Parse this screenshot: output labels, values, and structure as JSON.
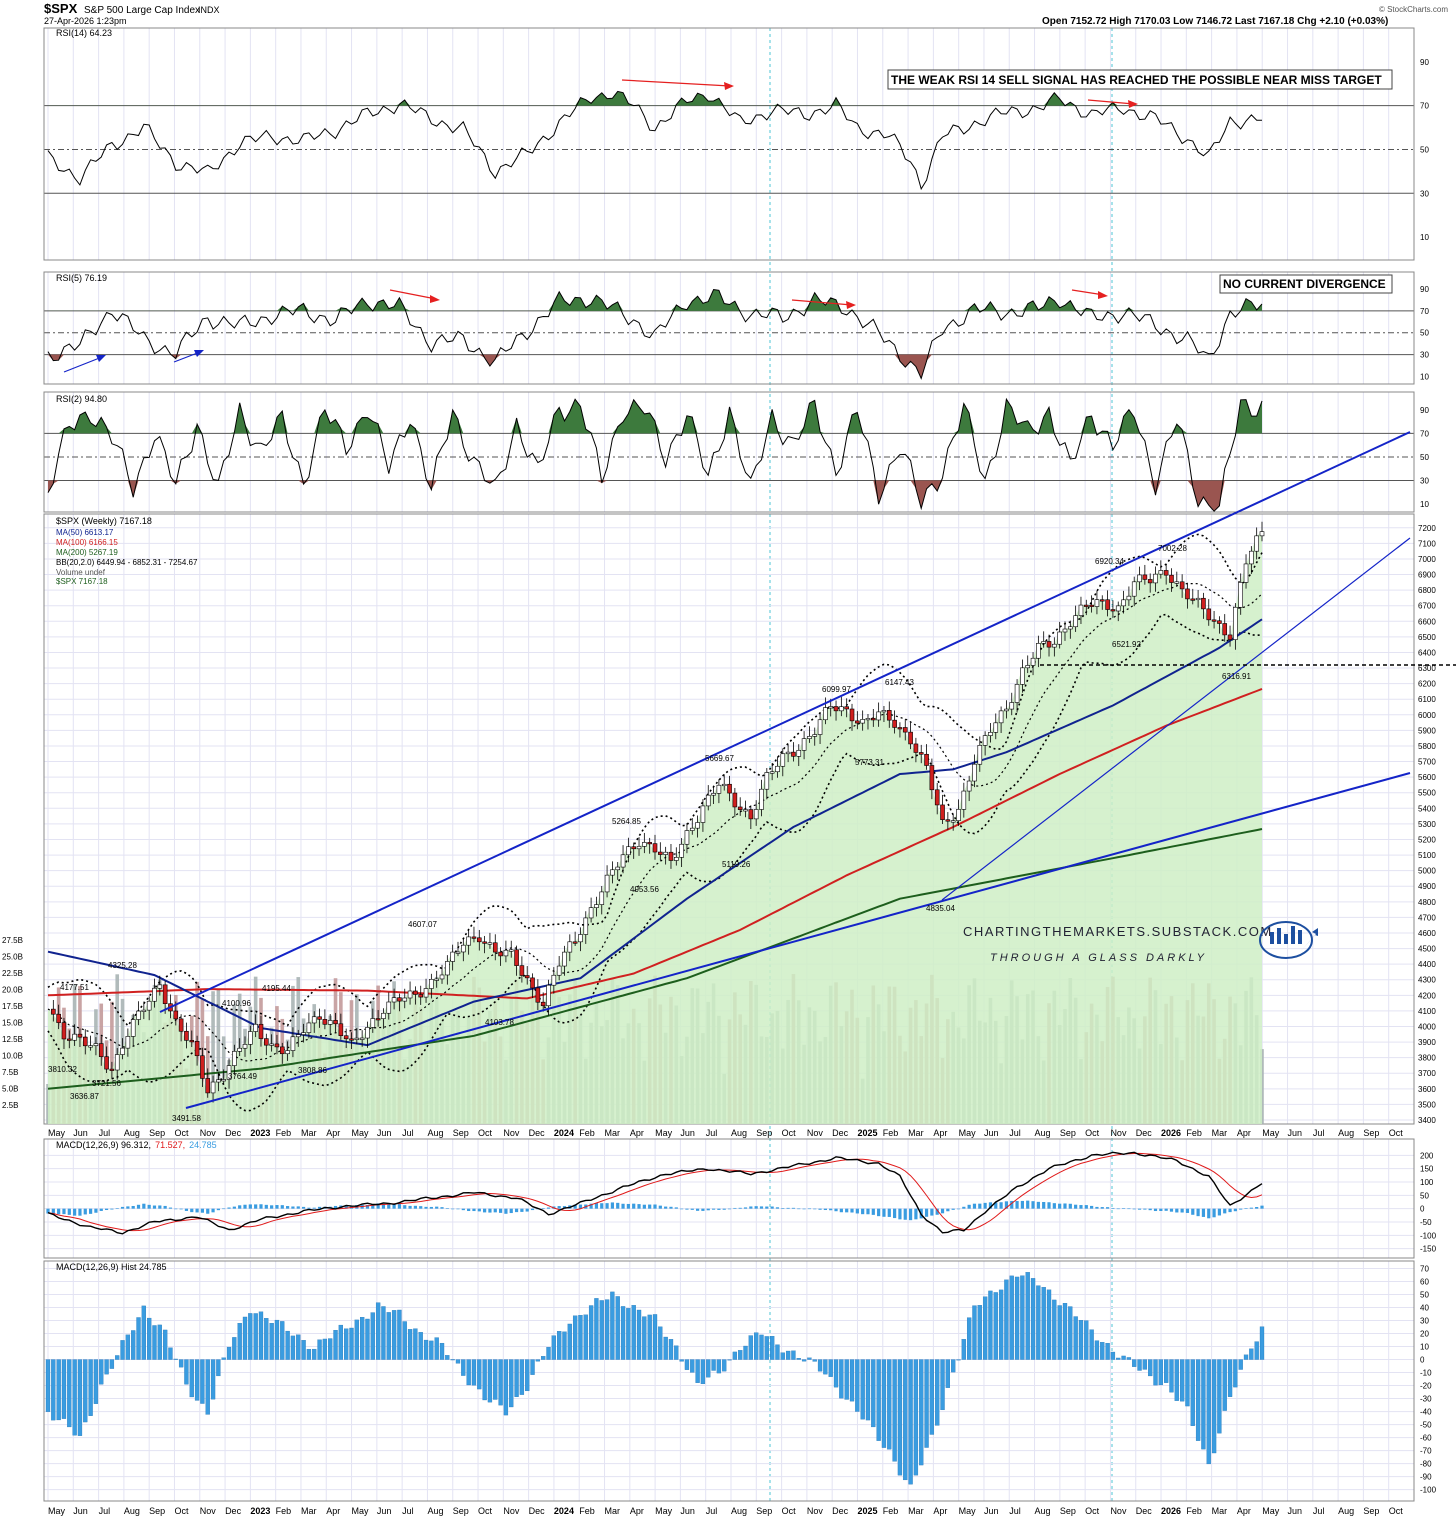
{
  "header": {
    "symbol": "$SPX",
    "name": "S&P 500 Large Cap Index",
    "exchange": "INDX",
    "datetime": "27-Apr-2026 1:23pm",
    "ohlc": "Open 7152.72  High 7170.03  Low 7146.72  Last 7167.18  Chg +2.10 (+0.03%)",
    "source": "© StockCharts.com"
  },
  "time_axis": {
    "labels": [
      "May",
      "Jun",
      "Jul",
      "Aug",
      "Sep",
      "Oct",
      "Nov",
      "Dec",
      "2023",
      "Feb",
      "Mar",
      "Apr",
      "May",
      "Jun",
      "Jul",
      "Aug",
      "Sep",
      "Oct",
      "Nov",
      "Dec",
      "2024",
      "Feb",
      "Mar",
      "Apr",
      "May",
      "Jun",
      "Jul",
      "Aug",
      "Sep",
      "Oct",
      "Nov",
      "Dec",
      "2025",
      "Feb",
      "Mar",
      "Apr",
      "May",
      "Jun",
      "Jul",
      "Aug",
      "Sep",
      "Oct",
      "Nov",
      "Dec",
      "2026",
      "Feb",
      "Mar",
      "Apr",
      "May",
      "Jun",
      "Jul",
      "Aug",
      "Sep",
      "Oct"
    ],
    "bold_labels": [
      "2023",
      "2024",
      "2025",
      "2026"
    ]
  },
  "colors": {
    "grid": "#e3e3f3",
    "ob_fill": "#3d7a3d",
    "os_fill": "#9a5550",
    "price_area": "#cfeec6",
    "up_candle": "#ffffff",
    "down_candle": "#d01f1f",
    "trendline": "#1424c8",
    "ma50": "#10238f",
    "ma100": "#d02020",
    "ma200": "#1d5e1d",
    "macd_line": "#000000",
    "signal_line": "#e01a1a",
    "hist": "#3a9ce0",
    "annotation_arrow": "#e52020"
  },
  "panels": {
    "rsi14": {
      "legend": "RSI(14) 64.23",
      "note": "THE WEAK RSI 14 SELL SIGNAL HAS REACHED THE POSSIBLE NEAR MISS TARGET",
      "ticks": [
        "90",
        "70",
        "50",
        "30",
        "10"
      ]
    },
    "rsi5": {
      "legend": "RSI(5) 76.19",
      "note": "NO CURRENT DIVERGENCE",
      "ticks": [
        "90",
        "70",
        "50",
        "30",
        "10"
      ]
    },
    "rsi2": {
      "legend": "RSI(2) 94.80",
      "ticks": [
        "90",
        "70",
        "50",
        "30",
        "10"
      ]
    },
    "price": {
      "legend": [
        "$SPX (Weekly) 7167.18",
        "MA(50) 6613.17",
        "MA(100) 6166.15",
        "MA(200) 5267.19",
        "BB(20,2.0) 6449.94 - 6852.31 - 7254.67",
        "Volume undef",
        "$SPX 7167.18"
      ],
      "ticks": [
        "7200",
        "7100",
        "7000",
        "6900",
        "6800",
        "6700",
        "6600",
        "6500",
        "6400",
        "6300",
        "6200",
        "6100",
        "6000",
        "5900",
        "5800",
        "5700",
        "5600",
        "5500",
        "5400",
        "5300",
        "5200",
        "5100",
        "5000",
        "4900",
        "4800",
        "4700",
        "4600",
        "4500",
        "4400",
        "4300",
        "4200",
        "4100",
        "4000",
        "3900",
        "3800",
        "3700",
        "3600",
        "3500",
        "3400"
      ],
      "vol_ticks": [
        "27.5B",
        "25.0B",
        "22.5B",
        "20.0B",
        "17.5B",
        "15.0B",
        "12.5B",
        "10.0B",
        "7.5B",
        "5.0B",
        "2.5B"
      ],
      "annotations": [
        "4177.51",
        "4325.28",
        "3810.32",
        "3721.56",
        "3636.87",
        "3491.58",
        "4100.96",
        "3764.49",
        "4195.44",
        "3808.86",
        "4607.07",
        "4103.78",
        "5264.85",
        "4953.56",
        "5669.67",
        "5119.26",
        "6099.97",
        "6147.43",
        "5773.31",
        "4835.04",
        "6920.34",
        "7002.28",
        "6521.92",
        "6316.91"
      ],
      "watermark_1": "CHARTINGTHEMARKETS.SUBSTACK.COM",
      "watermark_2": "THROUGH A GLASS DARKLY"
    },
    "macd": {
      "legend_a": "MACD(12,26,9) 96.312,",
      "legend_b": "71.527,",
      "legend_c": "24.785",
      "ticks": [
        "200",
        "150",
        "100",
        "50",
        "0",
        "-50",
        "-100",
        "-150"
      ]
    },
    "hist": {
      "legend": "MACD(12,26,9) Hist 24.785",
      "ticks": [
        "70",
        "60",
        "50",
        "40",
        "30",
        "20",
        "10",
        "0",
        "-10",
        "-20",
        "-30",
        "-40",
        "-50",
        "-60",
        "-70",
        "-80",
        "-90",
        "-100"
      ]
    }
  },
  "chart_data": {
    "type": "candlestick",
    "title": "$SPX S&P 500 Large Cap Index INDX",
    "period": "Weekly",
    "x_range": [
      "2022-05",
      "2026-10"
    ],
    "ylim": [
      3400,
      7250
    ],
    "last": 7167.18,
    "price_path": [
      [
        0,
        4150
      ],
      [
        3,
        3950
      ],
      [
        6,
        3900
      ],
      [
        9,
        3860
      ],
      [
        12,
        3730
      ],
      [
        15,
        3950
      ],
      [
        18,
        4120
      ],
      [
        21,
        4280
      ],
      [
        24,
        4020
      ],
      [
        27,
        3870
      ],
      [
        30,
        3600
      ],
      [
        33,
        3700
      ],
      [
        36,
        3850
      ],
      [
        39,
        3990
      ],
      [
        42,
        3880
      ],
      [
        45,
        3840
      ],
      [
        48,
        3980
      ],
      [
        51,
        4080
      ],
      [
        54,
        4000
      ],
      [
        57,
        3870
      ],
      [
        60,
        4000
      ],
      [
        63,
        4120
      ],
      [
        66,
        4170
      ],
      [
        69,
        4200
      ],
      [
        72,
        4290
      ],
      [
        75,
        4390
      ],
      [
        78,
        4530
      ],
      [
        81,
        4590
      ],
      [
        84,
        4480
      ],
      [
        87,
        4450
      ],
      [
        90,
        4300
      ],
      [
        93,
        4150
      ],
      [
        96,
        4400
      ],
      [
        99,
        4560
      ],
      [
        102,
        4760
      ],
      [
        105,
        4930
      ],
      [
        108,
        5090
      ],
      [
        111,
        5200
      ],
      [
        114,
        5140
      ],
      [
        117,
        5040
      ],
      [
        120,
        5240
      ],
      [
        123,
        5410
      ],
      [
        126,
        5550
      ],
      [
        129,
        5440
      ],
      [
        132,
        5350
      ],
      [
        135,
        5590
      ],
      [
        138,
        5720
      ],
      [
        141,
        5800
      ],
      [
        144,
        5900
      ],
      [
        147,
        6050
      ],
      [
        150,
        6030
      ],
      [
        153,
        5950
      ],
      [
        156,
        6000
      ],
      [
        159,
        5950
      ],
      [
        162,
        5850
      ],
      [
        165,
        5650
      ],
      [
        168,
        5290
      ],
      [
        171,
        5400
      ],
      [
        174,
        5700
      ],
      [
        177,
        5900
      ],
      [
        180,
        6050
      ],
      [
        183,
        6280
      ],
      [
        186,
        6420
      ],
      [
        189,
        6470
      ],
      [
        192,
        6610
      ],
      [
        195,
        6700
      ],
      [
        198,
        6710
      ],
      [
        201,
        6690
      ],
      [
        204,
        6850
      ],
      [
        207,
        6860
      ],
      [
        210,
        6930
      ],
      [
        213,
        6800
      ],
      [
        216,
        6700
      ],
      [
        219,
        6600
      ],
      [
        222,
        6520
      ],
      [
        225,
        6980
      ],
      [
        228,
        7167
      ]
    ],
    "ma50_path": [
      [
        0,
        4480
      ],
      [
        20,
        4330
      ],
      [
        40,
        3990
      ],
      [
        60,
        3880
      ],
      [
        80,
        4160
      ],
      [
        100,
        4310
      ],
      [
        120,
        4820
      ],
      [
        140,
        5280
      ],
      [
        160,
        5620
      ],
      [
        170,
        5650
      ],
      [
        180,
        5760
      ],
      [
        200,
        6060
      ],
      [
        220,
        6430
      ],
      [
        228,
        6613
      ]
    ],
    "ma100_path": [
      [
        0,
        4200
      ],
      [
        30,
        4240
      ],
      [
        60,
        4230
      ],
      [
        90,
        4180
      ],
      [
        110,
        4340
      ],
      [
        130,
        4620
      ],
      [
        150,
        4970
      ],
      [
        170,
        5280
      ],
      [
        190,
        5620
      ],
      [
        210,
        5930
      ],
      [
        228,
        6166
      ]
    ],
    "ma200_path": [
      [
        0,
        3600
      ],
      [
        40,
        3730
      ],
      [
        80,
        3940
      ],
      [
        120,
        4310
      ],
      [
        160,
        4820
      ],
      [
        200,
        5080
      ],
      [
        228,
        5267
      ]
    ],
    "rsi14_path": [
      [
        0,
        46
      ],
      [
        6,
        37
      ],
      [
        12,
        52
      ],
      [
        18,
        60
      ],
      [
        24,
        44
      ],
      [
        30,
        39
      ],
      [
        36,
        53
      ],
      [
        42,
        56
      ],
      [
        48,
        54
      ],
      [
        54,
        59
      ],
      [
        60,
        66
      ],
      [
        66,
        71
      ],
      [
        72,
        64
      ],
      [
        78,
        59
      ],
      [
        84,
        40
      ],
      [
        90,
        48
      ],
      [
        96,
        62
      ],
      [
        102,
        74
      ],
      [
        106,
        76
      ],
      [
        110,
        70
      ],
      [
        114,
        60
      ],
      [
        120,
        72
      ],
      [
        124,
        76
      ],
      [
        130,
        62
      ],
      [
        136,
        68
      ],
      [
        142,
        66
      ],
      [
        148,
        70
      ],
      [
        152,
        60
      ],
      [
        158,
        56
      ],
      [
        162,
        45
      ],
      [
        164,
        34
      ],
      [
        168,
        56
      ],
      [
        174,
        62
      ],
      [
        180,
        67
      ],
      [
        186,
        69
      ],
      [
        190,
        73
      ],
      [
        196,
        66
      ],
      [
        202,
        69
      ],
      [
        208,
        64
      ],
      [
        214,
        55
      ],
      [
        218,
        46
      ],
      [
        222,
        63
      ],
      [
        228,
        64
      ]
    ],
    "rsi5_path": [
      [
        0,
        30
      ],
      [
        6,
        38
      ],
      [
        12,
        72
      ],
      [
        18,
        44
      ],
      [
        24,
        31
      ],
      [
        30,
        64
      ],
      [
        36,
        56
      ],
      [
        42,
        66
      ],
      [
        48,
        70
      ],
      [
        54,
        61
      ],
      [
        60,
        80
      ],
      [
        66,
        73
      ],
      [
        72,
        41
      ],
      [
        78,
        44
      ],
      [
        84,
        23
      ],
      [
        90,
        52
      ],
      [
        96,
        78
      ],
      [
        102,
        82
      ],
      [
        110,
        62
      ],
      [
        114,
        46
      ],
      [
        120,
        80
      ],
      [
        126,
        82
      ],
      [
        132,
        67
      ],
      [
        138,
        64
      ],
      [
        144,
        79
      ],
      [
        150,
        73
      ],
      [
        156,
        49
      ],
      [
        160,
        31
      ],
      [
        164,
        12
      ],
      [
        168,
        54
      ],
      [
        174,
        71
      ],
      [
        180,
        69
      ],
      [
        186,
        72
      ],
      [
        190,
        82
      ],
      [
        196,
        63
      ],
      [
        202,
        69
      ],
      [
        208,
        57
      ],
      [
        214,
        43
      ],
      [
        218,
        25
      ],
      [
        222,
        68
      ],
      [
        228,
        76
      ]
    ],
    "macd_path": [
      [
        0,
        -20
      ],
      [
        8,
        -70
      ],
      [
        14,
        -90
      ],
      [
        20,
        -50
      ],
      [
        28,
        -30
      ],
      [
        34,
        -80
      ],
      [
        40,
        -40
      ],
      [
        48,
        -10
      ],
      [
        56,
        10
      ],
      [
        64,
        20
      ],
      [
        72,
        40
      ],
      [
        80,
        60
      ],
      [
        88,
        40
      ],
      [
        94,
        -20
      ],
      [
        100,
        20
      ],
      [
        108,
        80
      ],
      [
        116,
        130
      ],
      [
        124,
        150
      ],
      [
        132,
        130
      ],
      [
        140,
        160
      ],
      [
        148,
        190
      ],
      [
        156,
        170
      ],
      [
        160,
        120
      ],
      [
        164,
        -20
      ],
      [
        168,
        -90
      ],
      [
        172,
        -80
      ],
      [
        176,
        -10
      ],
      [
        182,
        80
      ],
      [
        188,
        150
      ],
      [
        196,
        200
      ],
      [
        204,
        210
      ],
      [
        212,
        180
      ],
      [
        218,
        120
      ],
      [
        222,
        10
      ],
      [
        228,
        96
      ]
    ],
    "hist_path": [
      [
        0,
        -40
      ],
      [
        6,
        -60
      ],
      [
        10,
        -20
      ],
      [
        14,
        10
      ],
      [
        18,
        40
      ],
      [
        22,
        20
      ],
      [
        26,
        -20
      ],
      [
        30,
        -40
      ],
      [
        34,
        10
      ],
      [
        38,
        40
      ],
      [
        42,
        30
      ],
      [
        46,
        20
      ],
      [
        50,
        10
      ],
      [
        54,
        20
      ],
      [
        58,
        30
      ],
      [
        62,
        40
      ],
      [
        66,
        35
      ],
      [
        70,
        20
      ],
      [
        74,
        10
      ],
      [
        78,
        -10
      ],
      [
        82,
        -30
      ],
      [
        86,
        -40
      ],
      [
        90,
        -20
      ],
      [
        94,
        10
      ],
      [
        98,
        30
      ],
      [
        102,
        40
      ],
      [
        106,
        50
      ],
      [
        110,
        40
      ],
      [
        114,
        30
      ],
      [
        118,
        10
      ],
      [
        122,
        -20
      ],
      [
        126,
        -10
      ],
      [
        130,
        10
      ],
      [
        134,
        20
      ],
      [
        138,
        10
      ],
      [
        142,
        0
      ],
      [
        146,
        -10
      ],
      [
        150,
        -30
      ],
      [
        154,
        -50
      ],
      [
        158,
        -70
      ],
      [
        162,
        -100
      ],
      [
        166,
        -60
      ],
      [
        170,
        -10
      ],
      [
        174,
        40
      ],
      [
        178,
        55
      ],
      [
        182,
        65
      ],
      [
        186,
        60
      ],
      [
        190,
        45
      ],
      [
        194,
        30
      ],
      [
        198,
        15
      ],
      [
        202,
        0
      ],
      [
        206,
        -10
      ],
      [
        210,
        -20
      ],
      [
        214,
        -40
      ],
      [
        218,
        -80
      ],
      [
        222,
        -30
      ],
      [
        226,
        10
      ],
      [
        228,
        25
      ]
    ],
    "rsi2_peaks": [
      [
        0,
        20
      ],
      [
        4,
        75
      ],
      [
        8,
        90
      ],
      [
        12,
        65
      ],
      [
        16,
        25
      ],
      [
        20,
        70
      ],
      [
        24,
        25
      ],
      [
        28,
        80
      ],
      [
        32,
        20
      ],
      [
        36,
        90
      ],
      [
        40,
        55
      ],
      [
        44,
        80
      ],
      [
        48,
        30
      ],
      [
        52,
        88
      ],
      [
        56,
        60
      ],
      [
        60,
        92
      ],
      [
        64,
        40
      ],
      [
        68,
        88
      ],
      [
        72,
        20
      ],
      [
        76,
        90
      ],
      [
        80,
        45
      ],
      [
        84,
        20
      ],
      [
        88,
        80
      ],
      [
        92,
        35
      ],
      [
        96,
        92
      ],
      [
        100,
        95
      ],
      [
        104,
        30
      ],
      [
        108,
        92
      ],
      [
        112,
        90
      ],
      [
        116,
        50
      ],
      [
        120,
        88
      ],
      [
        124,
        30
      ],
      [
        128,
        92
      ],
      [
        132,
        20
      ],
      [
        136,
        85
      ],
      [
        140,
        60
      ],
      [
        144,
        92
      ],
      [
        148,
        40
      ],
      [
        152,
        88
      ],
      [
        156,
        20
      ],
      [
        160,
        60
      ],
      [
        164,
        10
      ],
      [
        168,
        40
      ],
      [
        172,
        90
      ],
      [
        176,
        30
      ],
      [
        180,
        92
      ],
      [
        184,
        70
      ],
      [
        188,
        90
      ],
      [
        192,
        40
      ],
      [
        196,
        88
      ],
      [
        200,
        60
      ],
      [
        204,
        88
      ],
      [
        208,
        30
      ],
      [
        212,
        80
      ],
      [
        216,
        15
      ],
      [
        220,
        8
      ],
      [
        224,
        92
      ],
      [
        228,
        95
      ]
    ]
  }
}
